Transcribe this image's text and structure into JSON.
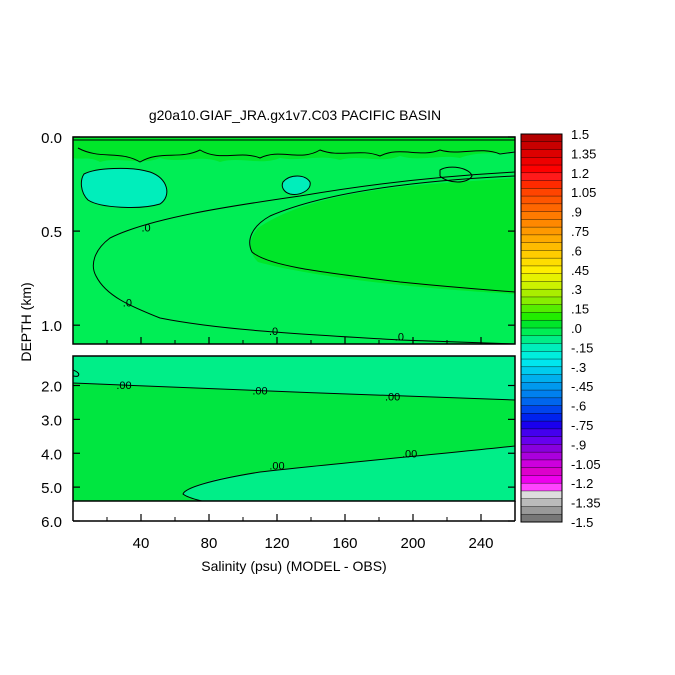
{
  "chart_data": {
    "type": "heatmap",
    "title": "g20a10.GIAF_JRA.gx1v7.C03 PACIFIC BASIN",
    "xlabel": "Salinity (psu) (MODEL - OBS)",
    "ylabel": "DEPTH (km)",
    "xlim": [
      0,
      260
    ],
    "x_ticks": [
      "40",
      "80",
      "120",
      "160",
      "200",
      "240"
    ],
    "x_tick_values": [
      40,
      80,
      120,
      160,
      200,
      240
    ],
    "panels": [
      {
        "name": "upper",
        "ylim": [
          0.0,
          1.1
        ],
        "y_ticks": [
          "0.0",
          "0.5",
          "1.0"
        ],
        "y_tick_values": [
          0.0,
          0.5,
          1.0
        ],
        "contour_labels": [
          {
            "text": ".0",
            "x": 43,
            "y": 0.48
          },
          {
            "text": ".0",
            "x": 32,
            "y": 0.88
          },
          {
            "text": ".0",
            "x": 118,
            "y": 1.03
          },
          {
            "text": ".0",
            "x": 192,
            "y": 1.06
          }
        ],
        "regions": [
          {
            "name": "near-zero background",
            "value": 0.0,
            "color": "#00ee55"
          },
          {
            "name": "positive core",
            "value": 0.075,
            "color": "#00e62a"
          },
          {
            "name": "negative patches",
            "value": -0.15,
            "color": "#00eebb"
          }
        ]
      },
      {
        "name": "lower",
        "ylim": [
          1.4,
          6.0
        ],
        "y_ticks": [
          "2.0",
          "3.0",
          "4.0",
          "5.0",
          "6.0"
        ],
        "y_tick_values": [
          2.0,
          3.0,
          4.0,
          5.0,
          6.0
        ],
        "contour_labels": [
          {
            "text": ".00",
            "x": 30,
            "y": 1.98
          },
          {
            "text": ".00",
            "x": 110,
            "y": 2.15
          },
          {
            "text": ".00",
            "x": 188,
            "y": 2.32
          },
          {
            "text": ".00",
            "x": 120,
            "y": 4.36
          },
          {
            "text": ".00",
            "x": 198,
            "y": 4.0
          }
        ],
        "data_extent_depth": 5.33,
        "regions": [
          {
            "name": "near-zero background",
            "value": -0.03,
            "color": "#00ee88"
          },
          {
            "name": "positive band",
            "value": 0.03,
            "color": "#00e640"
          }
        ]
      }
    ],
    "colorbar": {
      "labels": [
        "1.5",
        "1.35",
        "1.2",
        "1.05",
        ".9",
        ".75",
        ".6",
        ".45",
        ".3",
        ".15",
        ".0",
        "-.15",
        "-.3",
        "-.45",
        "-.6",
        "-.75",
        "-.9",
        "-1.05",
        "-1.2",
        "-1.35",
        "-1.5"
      ],
      "label_values": [
        1.5,
        1.35,
        1.2,
        1.05,
        0.9,
        0.75,
        0.6,
        0.45,
        0.3,
        0.15,
        0.0,
        -0.15,
        -0.3,
        -0.45,
        -0.6,
        -0.75,
        -0.9,
        -1.05,
        -1.2,
        -1.35,
        -1.5
      ],
      "colors": [
        "#b30000",
        "#c80000",
        "#dd0000",
        "#ee0000",
        "#ff0000",
        "#ff1a1a",
        "#ff2a00",
        "#ff4400",
        "#ff5500",
        "#ff6600",
        "#ff7a00",
        "#ff8800",
        "#ff9900",
        "#ffaa00",
        "#ffbb00",
        "#ffcc00",
        "#ffdd00",
        "#ffee00",
        "#e6f200",
        "#ccf200",
        "#aaee00",
        "#88ee00",
        "#55ee00",
        "#22ee00",
        "#00e62a",
        "#00ee55",
        "#00ee88",
        "#00eebb",
        "#00eedd",
        "#00e6ee",
        "#00ccee",
        "#00b0ee",
        "#0099ee",
        "#0080ee",
        "#0066ee",
        "#0044ee",
        "#0022ee",
        "#1a00ee",
        "#4400ee",
        "#6600ee",
        "#8800dd",
        "#aa00dd",
        "#cc00dd",
        "#dd00cc",
        "#ee00ee",
        "#ff44ff",
        "#dddddd",
        "#bbbbbb",
        "#999999",
        "#777777"
      ]
    }
  }
}
